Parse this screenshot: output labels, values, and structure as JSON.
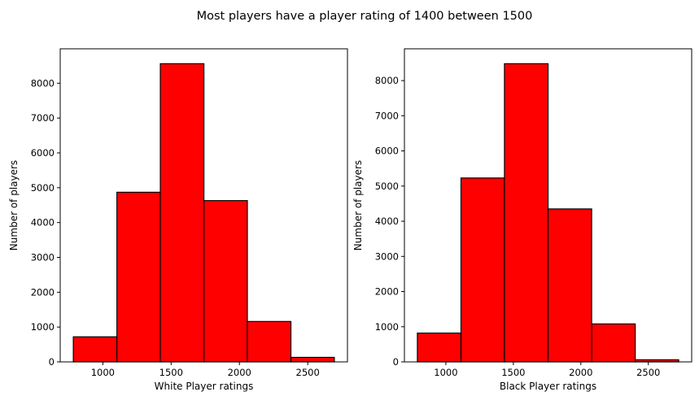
{
  "title": "Most players have a player rating of 1400 between 1500",
  "chart_data": [
    {
      "type": "bar",
      "xlabel": "White Player ratings",
      "ylabel": "Number of players",
      "bin_edges": [
        784,
        1103,
        1421,
        1740,
        2058,
        2377,
        2695
      ],
      "values": [
        720,
        4870,
        8560,
        4630,
        1160,
        130
      ],
      "xlim": [
        688,
        2791
      ],
      "ylim": [
        0,
        8988
      ],
      "xticks": [
        1000,
        1500,
        2000,
        2500
      ],
      "yticks": [
        0,
        1000,
        2000,
        3000,
        4000,
        5000,
        6000,
        7000,
        8000
      ],
      "color": "#ff0000",
      "grid": false
    },
    {
      "type": "bar",
      "xlabel": "Black Player ratings",
      "ylabel": "Number of players",
      "bin_edges": [
        789,
        1112,
        1434,
        1757,
        2080,
        2403,
        2725
      ],
      "values": [
        820,
        5230,
        8480,
        4350,
        1080,
        60
      ],
      "xlim": [
        693,
        2821
      ],
      "ylim": [
        0,
        8904
      ],
      "xticks": [
        1000,
        1500,
        2000,
        2500
      ],
      "yticks": [
        0,
        1000,
        2000,
        3000,
        4000,
        5000,
        6000,
        7000,
        8000
      ],
      "color": "#ff0000",
      "grid": false
    }
  ]
}
